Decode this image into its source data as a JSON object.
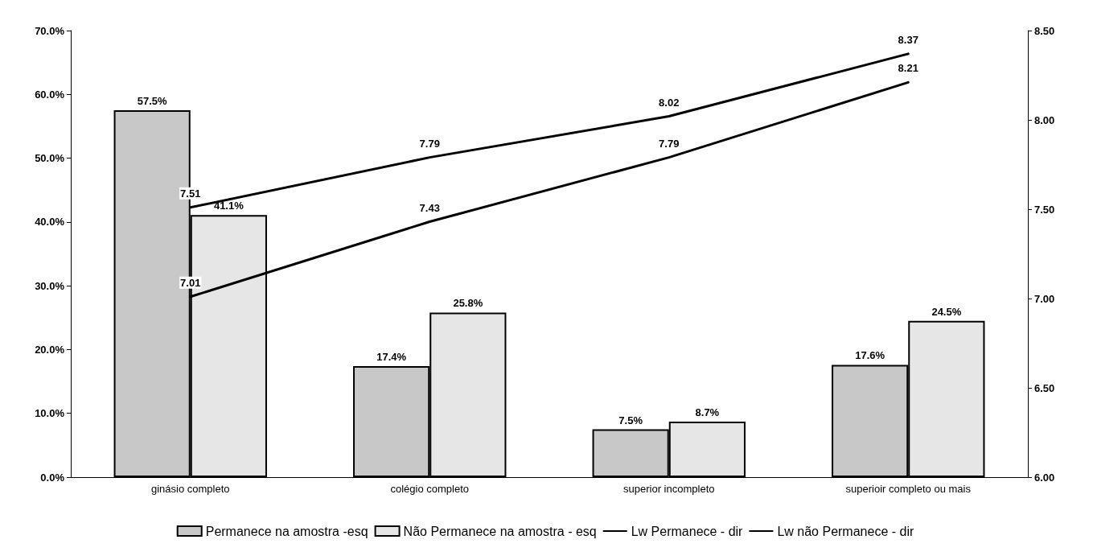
{
  "chart_data": {
    "type": "bar",
    "categories": [
      "ginásio completo",
      "colégio completo",
      "superior incompleto",
      "superioir completo ou mais"
    ],
    "series": [
      {
        "name": "Permanece na amostra -esq",
        "color": "#c8c8c8",
        "values": [
          57.5,
          17.4,
          7.5,
          17.6
        ],
        "value_labels": [
          "57.5%",
          "17.4%",
          "7.5%",
          "17.6%"
        ]
      },
      {
        "name": "Não Permanece na amostra - esq",
        "color": "#e6e6e6",
        "values": [
          41.1,
          25.8,
          8.7,
          24.5
        ],
        "value_labels": [
          "41.1%",
          "25.8%",
          "8.7%",
          "24.5%"
        ]
      },
      {
        "name": "Lw Permanece - dir",
        "type": "line",
        "axis": "y2",
        "color": "#000000",
        "values": [
          7.51,
          7.79,
          8.02,
          8.37
        ],
        "value_labels": [
          "7.51",
          "7.79",
          "8.02",
          "8.37"
        ]
      },
      {
        "name": "Lw não Permanece - dir",
        "type": "line",
        "axis": "y2",
        "color": "#000000",
        "values": [
          7.01,
          7.43,
          7.79,
          8.21
        ],
        "value_labels": [
          "7.01",
          "7.43",
          "7.79",
          "8.21"
        ]
      }
    ],
    "ylim": [
      0,
      70
    ],
    "yticks": [
      {
        "value": 0,
        "label": "0.0%"
      },
      {
        "value": 10,
        "label": "10.0%"
      },
      {
        "value": 20,
        "label": "20.0%"
      },
      {
        "value": 30,
        "label": "30.0%"
      },
      {
        "value": 40,
        "label": "40.0%"
      },
      {
        "value": 50,
        "label": "50.0%"
      },
      {
        "value": 60,
        "label": "60.0%"
      },
      {
        "value": 70,
        "label": "70.0%"
      }
    ],
    "y2lim": [
      6,
      8.5
    ],
    "y2ticks": [
      {
        "value": 6,
        "label": "6.00"
      },
      {
        "value": 6.5,
        "label": "6.50"
      },
      {
        "value": 7,
        "label": "7.00"
      },
      {
        "value": 7.5,
        "label": "7.50"
      },
      {
        "value": 8,
        "label": "8.00"
      },
      {
        "value": 8.5,
        "label": "8.50"
      }
    ],
    "grid": false,
    "legend": "bottom",
    "marker": "none",
    "line_style": "solid"
  }
}
